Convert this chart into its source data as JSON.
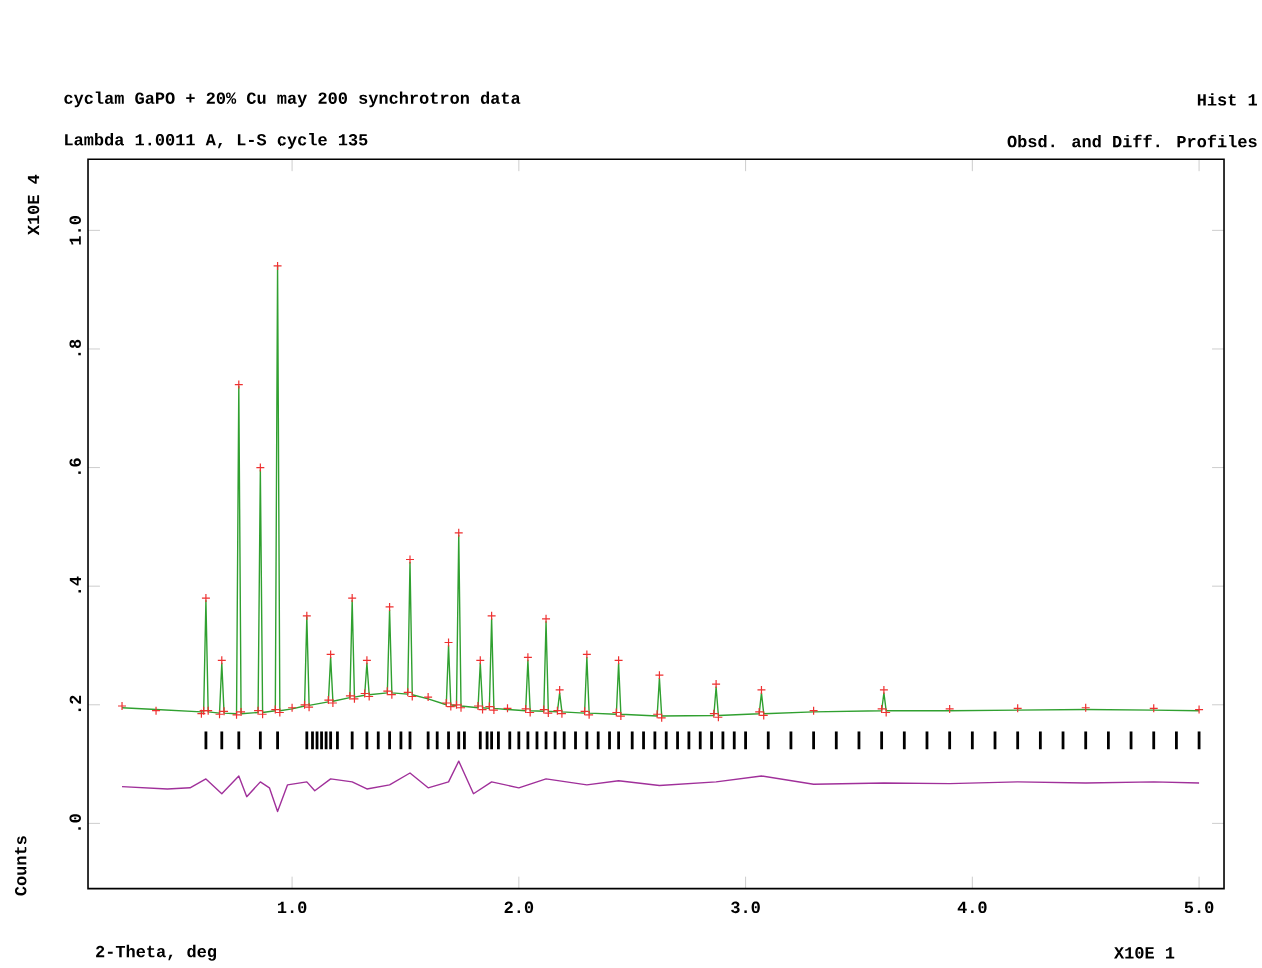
{
  "chart_data": {
    "type": "line",
    "title": "cyclam GaPO + 20% Cu may 200 synchrotron data",
    "subtitle": "Lambda 1.0011 A, L-S cycle  135",
    "xlabel": "2-Theta, deg",
    "ylabel": "Counts",
    "annotations": [
      "Hist  1",
      "Obsd. and Diff. Profiles",
      "X10E  4",
      "X10E  1"
    ],
    "xlim": [
      0.1,
      5.11
    ],
    "ylim": [
      -0.11,
      1.12
    ],
    "xticks": [
      {
        "value": 1,
        "label": "1.0"
      },
      {
        "value": 2,
        "label": "2.0"
      },
      {
        "value": 3,
        "label": "3.0"
      },
      {
        "value": 4,
        "label": "4.0"
      },
      {
        "value": 5,
        "label": "5.0"
      }
    ],
    "yticks": [
      {
        "value": 0,
        "label": ".0"
      },
      {
        "value": 0.2,
        "label": ".2"
      },
      {
        "value": 0.4,
        "label": ".4"
      },
      {
        "value": 0.6,
        "label": ".6"
      },
      {
        "value": 0.8,
        "label": ".8"
      },
      {
        "value": 1,
        "label": "1.0"
      }
    ],
    "grid": false,
    "legend": false,
    "series": [
      {
        "type": "scatter",
        "marker": "cross",
        "color": "#ee3030",
        "x": [
          0.25,
          0.4,
          0.6,
          0.61,
          0.62,
          0.63,
          0.68,
          0.69,
          0.7,
          0.755,
          0.765,
          0.775,
          0.85,
          0.86,
          0.87,
          0.926,
          0.936,
          0.946,
          1.0,
          1.055,
          1.065,
          1.075,
          1.16,
          1.17,
          1.18,
          1.255,
          1.265,
          1.275,
          1.32,
          1.33,
          1.34,
          1.42,
          1.43,
          1.44,
          1.51,
          1.52,
          1.53,
          1.6,
          1.68,
          1.69,
          1.7,
          1.725,
          1.735,
          1.745,
          1.82,
          1.83,
          1.84,
          1.87,
          1.88,
          1.89,
          1.95,
          2.03,
          2.04,
          2.05,
          2.11,
          2.12,
          2.13,
          2.17,
          2.18,
          2.19,
          2.29,
          2.3,
          2.31,
          2.43,
          2.44,
          2.45,
          2.61,
          2.62,
          2.63,
          2.86,
          2.87,
          2.88,
          3.06,
          3.07,
          3.08,
          3.3,
          3.6,
          3.61,
          3.62,
          3.9,
          4.2,
          4.5,
          4.8,
          5.0
        ],
        "values": [
          0.198,
          0.19,
          0.185,
          0.19,
          0.38,
          0.19,
          0.184,
          0.275,
          0.189,
          0.183,
          0.74,
          0.188,
          0.19,
          0.6,
          0.184,
          0.192,
          0.94,
          0.187,
          0.195,
          0.2,
          0.35,
          0.196,
          0.208,
          0.285,
          0.203,
          0.215,
          0.38,
          0.21,
          0.219,
          0.275,
          0.214,
          0.223,
          0.365,
          0.217,
          0.221,
          0.445,
          0.214,
          0.213,
          0.203,
          0.305,
          0.197,
          0.2,
          0.49,
          0.195,
          0.198,
          0.275,
          0.192,
          0.197,
          0.35,
          0.191,
          0.194,
          0.193,
          0.28,
          0.187,
          0.192,
          0.345,
          0.186,
          0.19,
          0.225,
          0.185,
          0.189,
          0.285,
          0.183,
          0.187,
          0.275,
          0.181,
          0.184,
          0.25,
          0.178,
          0.185,
          0.235,
          0.179,
          0.188,
          0.225,
          0.182,
          0.19,
          0.193,
          0.225,
          0.187,
          0.193,
          0.194,
          0.195,
          0.194,
          0.192
        ]
      },
      {
        "color": "#30a030",
        "x": [
          0.25,
          0.4,
          0.6,
          0.61,
          0.62,
          0.63,
          0.68,
          0.69,
          0.7,
          0.755,
          0.765,
          0.775,
          0.85,
          0.86,
          0.87,
          0.926,
          0.936,
          0.946,
          1.0,
          1.055,
          1.065,
          1.075,
          1.16,
          1.17,
          1.18,
          1.255,
          1.265,
          1.275,
          1.32,
          1.33,
          1.34,
          1.42,
          1.43,
          1.44,
          1.51,
          1.52,
          1.53,
          1.6,
          1.68,
          1.69,
          1.7,
          1.725,
          1.735,
          1.745,
          1.82,
          1.83,
          1.84,
          1.87,
          1.88,
          1.89,
          1.95,
          2.03,
          2.04,
          2.05,
          2.11,
          2.12,
          2.13,
          2.17,
          2.18,
          2.19,
          2.29,
          2.3,
          2.31,
          2.43,
          2.44,
          2.45,
          2.61,
          2.62,
          2.63,
          2.86,
          2.87,
          2.88,
          3.06,
          3.07,
          3.08,
          3.3,
          3.6,
          3.61,
          3.62,
          3.9,
          4.2,
          4.5,
          4.8,
          5.0
        ],
        "values": [
          0.195,
          0.192,
          0.188,
          0.188,
          0.376,
          0.188,
          0.186,
          0.27,
          0.186,
          0.185,
          0.737,
          0.185,
          0.187,
          0.596,
          0.187,
          0.19,
          0.94,
          0.19,
          0.193,
          0.198,
          0.348,
          0.199,
          0.205,
          0.28,
          0.206,
          0.212,
          0.376,
          0.213,
          0.216,
          0.27,
          0.217,
          0.22,
          0.36,
          0.22,
          0.218,
          0.44,
          0.217,
          0.21,
          0.2,
          0.3,
          0.2,
          0.198,
          0.486,
          0.198,
          0.195,
          0.27,
          0.195,
          0.194,
          0.345,
          0.194,
          0.192,
          0.19,
          0.275,
          0.19,
          0.189,
          0.34,
          0.189,
          0.188,
          0.22,
          0.188,
          0.186,
          0.28,
          0.186,
          0.184,
          0.27,
          0.184,
          0.181,
          0.245,
          0.181,
          0.182,
          0.23,
          0.182,
          0.185,
          0.22,
          0.185,
          0.188,
          0.19,
          0.22,
          0.19,
          0.19,
          0.191,
          0.192,
          0.191,
          0.19
        ]
      },
      {
        "type": "line",
        "color": "#a0309a",
        "x": [
          0.25,
          0.35,
          0.45,
          0.55,
          0.62,
          0.69,
          0.765,
          0.8,
          0.86,
          0.9,
          0.936,
          0.98,
          1.065,
          1.1,
          1.17,
          1.265,
          1.33,
          1.43,
          1.52,
          1.6,
          1.69,
          1.735,
          1.8,
          1.88,
          2.0,
          2.12,
          2.3,
          2.44,
          2.62,
          2.87,
          3.07,
          3.3,
          3.61,
          3.9,
          4.2,
          4.5,
          4.8,
          5.0
        ],
        "values": [
          0.062,
          0.06,
          0.058,
          0.06,
          0.075,
          0.05,
          0.08,
          0.045,
          0.07,
          0.06,
          0.02,
          0.065,
          0.07,
          0.055,
          0.075,
          0.07,
          0.058,
          0.065,
          0.085,
          0.06,
          0.07,
          0.105,
          0.05,
          0.07,
          0.06,
          0.075,
          0.065,
          0.072,
          0.064,
          0.07,
          0.08,
          0.066,
          0.068,
          0.067,
          0.07,
          0.068,
          0.07,
          0.068
        ]
      },
      {
        "type": "bar",
        "color": "#000000",
        "base": [
          0.125,
          0.125,
          0.125,
          0.125,
          0.125,
          0.125,
          0.125,
          0.125,
          0.125,
          0.125,
          0.125,
          0.125,
          0.125,
          0.125,
          0.125,
          0.125,
          0.125,
          0.125,
          0.125,
          0.125,
          0.125,
          0.125,
          0.125,
          0.125,
          0.125,
          0.125,
          0.125,
          0.125,
          0.125,
          0.125,
          0.125,
          0.125,
          0.125,
          0.125,
          0.125,
          0.125,
          0.125,
          0.125,
          0.125,
          0.125,
          0.125,
          0.125,
          0.125,
          0.125,
          0.125,
          0.125,
          0.125,
          0.125,
          0.125,
          0.125,
          0.125,
          0.125,
          0.125,
          0.125,
          0.125,
          0.125,
          0.125,
          0.125,
          0.125,
          0.125,
          0.125,
          0.125,
          0.125,
          0.125,
          0.125,
          0.125,
          0.125,
          0.125,
          0.125,
          0.125
        ],
        "x": [
          0.62,
          0.69,
          0.765,
          0.86,
          0.936,
          1.065,
          1.09,
          1.11,
          1.13,
          1.15,
          1.17,
          1.2,
          1.265,
          1.33,
          1.38,
          1.43,
          1.48,
          1.52,
          1.6,
          1.64,
          1.69,
          1.735,
          1.76,
          1.83,
          1.86,
          1.88,
          1.91,
          1.96,
          2.0,
          2.04,
          2.08,
          2.12,
          2.16,
          2.2,
          2.25,
          2.3,
          2.35,
          2.4,
          2.44,
          2.5,
          2.55,
          2.6,
          2.65,
          2.7,
          2.75,
          2.8,
          2.85,
          2.9,
          2.95,
          3.0,
          3.1,
          3.2,
          3.3,
          3.4,
          3.5,
          3.6,
          3.7,
          3.8,
          3.9,
          4.0,
          4.1,
          4.2,
          4.3,
          4.4,
          4.5,
          4.6,
          4.7,
          4.8,
          4.9,
          5.0
        ],
        "values": [
          0.03,
          0.03,
          0.03,
          0.03,
          0.03,
          0.03,
          0.03,
          0.03,
          0.03,
          0.03,
          0.03,
          0.03,
          0.03,
          0.03,
          0.03,
          0.03,
          0.03,
          0.03,
          0.03,
          0.03,
          0.03,
          0.03,
          0.03,
          0.03,
          0.03,
          0.03,
          0.03,
          0.03,
          0.03,
          0.03,
          0.03,
          0.03,
          0.03,
          0.03,
          0.03,
          0.03,
          0.03,
          0.03,
          0.03,
          0.03,
          0.03,
          0.03,
          0.03,
          0.03,
          0.03,
          0.03,
          0.03,
          0.03,
          0.03,
          0.03,
          0.03,
          0.03,
          0.03,
          0.03,
          0.03,
          0.03,
          0.03,
          0.03,
          0.03,
          0.03,
          0.03,
          0.03,
          0.03,
          0.03,
          0.03,
          0.03,
          0.03,
          0.03,
          0.03,
          0.03
        ]
      }
    ]
  }
}
